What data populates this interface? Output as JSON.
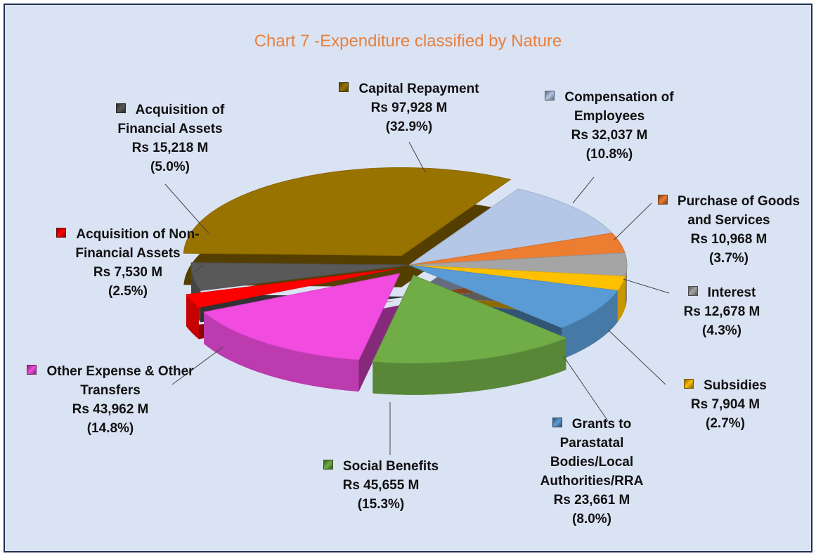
{
  "chart_data": {
    "type": "pie",
    "title": "Chart 7 -Expenditure classified by Nature",
    "categories": [
      "Compensation of Employees",
      "Purchase of Goods and Services",
      "Interest",
      "Subsidies",
      "Grants to Parastatal Bodies/Local Authorities/RRA",
      "Social Benefits",
      "Other Expense & Other Transfers",
      "Acquisition of Non-Financial Assets",
      "Acquisition of Financial Assets",
      "Capital Repayment"
    ],
    "values": [
      32037,
      10968,
      12678,
      7904,
      23661,
      45655,
      43962,
      7530,
      15218,
      97928
    ],
    "value_labels": [
      "Rs 32,037 M",
      "Rs 10,968 M",
      "Rs 12,678 M",
      "Rs 7,904 M",
      "Rs 23,661 M",
      "Rs 45,655 M",
      "Rs 43,962 M",
      "Rs 7,530 M",
      "Rs 15,218 M",
      "Rs 97,928 M"
    ],
    "percentages": [
      10.8,
      3.7,
      4.3,
      2.7,
      8.0,
      15.3,
      14.8,
      2.5,
      5.0,
      32.9
    ],
    "percentage_labels": [
      "(10.8%)",
      "(3.7%)",
      "(4.3%)",
      "(2.7%)",
      "(8.0%)",
      "(15.3%)",
      "(14.8%)",
      "(2.5%)",
      "(5.0%)",
      "(32.9%)"
    ],
    "colors": [
      "#b4c7e7",
      "#ed7d31",
      "#a5a5a5",
      "#ffc000",
      "#5b9bd5",
      "#70ad47",
      "#f14be0",
      "#ff0000",
      "#595959",
      "#997300"
    ]
  }
}
